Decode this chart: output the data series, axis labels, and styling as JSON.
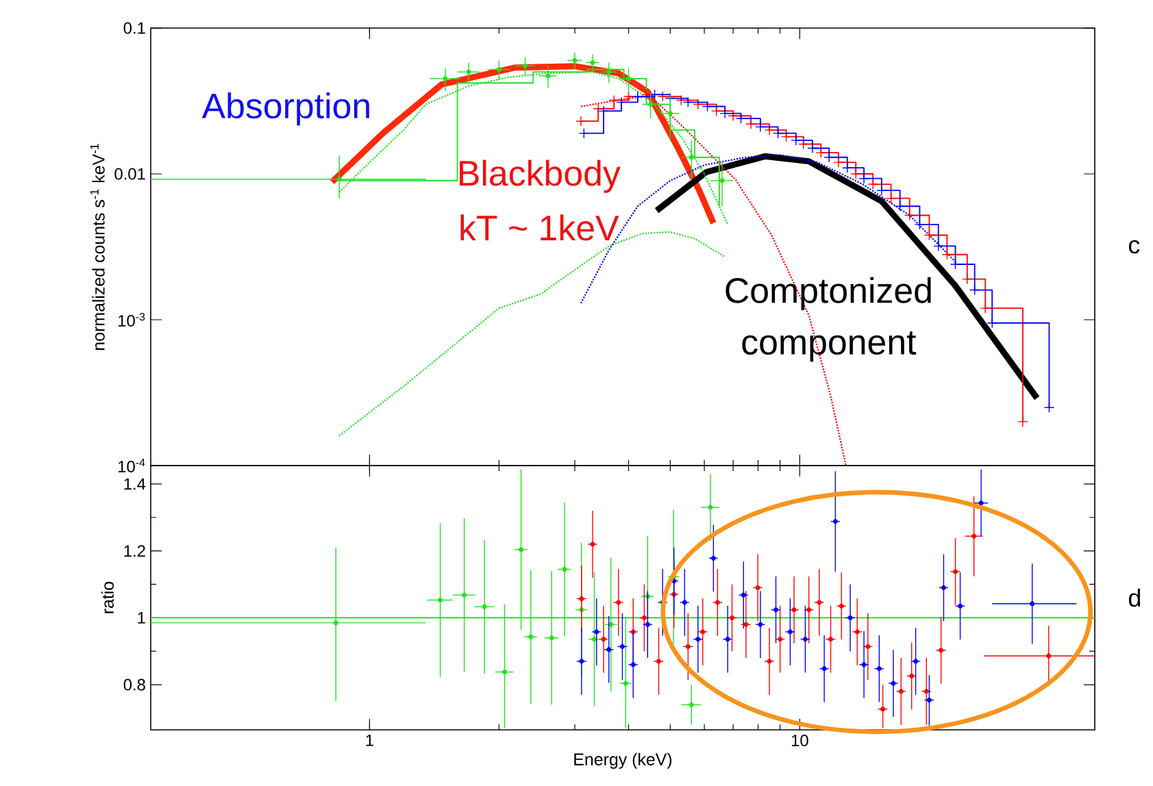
{
  "chart_data": [
    {
      "type": "step",
      "ylabel": "normalized counts s$^{-1}$ keV$^{-1}$",
      "log": "xy",
      "tick_labels": "y",
      "xlim": [
        0.31,
        48.5
      ],
      "xticks": [
        1,
        10
      ],
      "ylim": [
        0.0001,
        0.1
      ],
      "yticks": [
        0.1,
        0.01,
        {
          "value": 0.001,
          "label": "10$^{-3}$"
        },
        {
          "value": 0.0001,
          "label": "10$^{-4}$"
        }
      ],
      "series": [
        {
          "type": "scatter",
          "color": "#22e022",
          "marker": "circle",
          "x": [
            0.85,
            1.5,
            1.7,
            2.0,
            2.3,
            2.6,
            3.0,
            3.3,
            3.6,
            4.0,
            4.5,
            5.0,
            5.6,
            6.6
          ],
          "values": [
            0.0092,
            0.045,
            0.05,
            0.052,
            0.055,
            0.047,
            0.06,
            0.058,
            0.05,
            0.045,
            0.03,
            0.026,
            0.013,
            0.009
          ],
          "errors": [
            [
              0.0068,
              0.0134
            ],
            0.008,
            0.008,
            0.008,
            0.008,
            0.008,
            0.008,
            0.008,
            0.008,
            0.008,
            0.006,
            0.009,
            0.004,
            0.003
          ],
          "xerrors": [
            [
              0.31,
              1.35
            ],
            0.12,
            0.1,
            0.12,
            0.12,
            0.12,
            0.12,
            0.12,
            0.15,
            0.2,
            0.2,
            0.25,
            0.3,
            0.4
          ]
        },
        {
          "type": "step",
          "color": "#22e022",
          "x": [
            0.85,
            1.6,
            2.4,
            3.2,
            3.9,
            4.4,
            5.0,
            5.7,
            6.5
          ],
          "values": [
            0.009,
            0.042,
            0.05,
            0.052,
            0.045,
            0.03,
            0.02,
            0.013,
            0.006
          ]
        },
        {
          "type": "step",
          "color": "#ff0000",
          "marker": "cross",
          "x": [
            3.1,
            3.4,
            3.7,
            4.0,
            4.4,
            4.8,
            5.3,
            5.8,
            6.4,
            7.0,
            7.7,
            8.5,
            9.3,
            10.2,
            11.2,
            12.3,
            13.5,
            14.8,
            16.3,
            18,
            20,
            22,
            24.5,
            27,
            33
          ],
          "values": [
            0.023,
            0.028,
            0.032,
            0.034,
            0.035,
            0.034,
            0.032,
            0.03,
            0.027,
            0.025,
            0.022,
            0.02,
            0.018,
            0.016,
            0.014,
            0.012,
            0.01,
            0.0085,
            0.0068,
            0.0052,
            0.0038,
            0.0028,
            0.0019,
            0.0012,
            0.0002
          ]
        },
        {
          "type": "step",
          "color": "#0000ff",
          "marker": "cross",
          "x": [
            3.15,
            3.5,
            3.85,
            4.2,
            4.6,
            5.0,
            5.5,
            6.1,
            6.7,
            7.3,
            8.1,
            8.9,
            9.8,
            10.7,
            11.7,
            12.9,
            14.1,
            15.5,
            17.1,
            19,
            21,
            23,
            25.5,
            28,
            38
          ],
          "values": [
            0.019,
            0.027,
            0.031,
            0.034,
            0.035,
            0.033,
            0.031,
            0.029,
            0.026,
            0.024,
            0.021,
            0.019,
            0.017,
            0.015,
            0.013,
            0.011,
            0.0093,
            0.0077,
            0.006,
            0.0045,
            0.0032,
            0.0024,
            0.0016,
            0.00095,
            0.00025
          ]
        },
        {
          "type": "line",
          "color": "#22e022",
          "line_style": "dotted",
          "x": [
            0.85,
            1.0,
            1.2,
            1.35,
            1.7,
            2.1,
            2.6,
            3.3,
            3.8,
            4.5,
            5.3,
            6.0,
            6.8
          ],
          "values": [
            0.0075,
            0.012,
            0.02,
            0.03,
            0.04,
            0.046,
            0.049,
            0.05,
            0.045,
            0.032,
            0.018,
            0.01,
            0.0045
          ]
        },
        {
          "type": "line",
          "color": "#22e022",
          "line_style": "dotted",
          "x": [
            0.85,
            1.2,
            1.6,
            2.0,
            2.5,
            3.0,
            3.6,
            4.3,
            5.0,
            5.7,
            6.7
          ],
          "values": [
            0.00016,
            0.00035,
            0.0007,
            0.0012,
            0.0015,
            0.0022,
            0.0032,
            0.0039,
            0.004,
            0.0036,
            0.0027
          ]
        },
        {
          "type": "line",
          "color": "#ff0000",
          "line_style": "dotted",
          "x": [
            3.1,
            4.0,
            4.5,
            5.4,
            7.1,
            8.6,
            10.5,
            11.8,
            12.8
          ],
          "values": [
            0.029,
            0.033,
            0.034,
            0.0205,
            0.0091,
            0.0038,
            0.00107,
            0.0003,
            0.0001
          ]
        },
        {
          "type": "line",
          "color": "#0000ff",
          "line_style": "dotted",
          "x": [
            3.1,
            3.6,
            4.2,
            5.0,
            6.0,
            7.5,
            9.0,
            11,
            14,
            18,
            23
          ],
          "values": [
            0.0013,
            0.003,
            0.006,
            0.009,
            0.0115,
            0.013,
            0.0135,
            0.012,
            0.0085,
            0.0052,
            0.0025
          ]
        },
        {
          "type": "line",
          "color": "#ff2a0a",
          "x": [
            0.818,
            1.08,
            1.47,
            2.18,
            2.99,
            3.79,
            4.43,
            5.19,
            5.84,
            6.3
          ],
          "values": [
            0.0088,
            0.0193,
            0.041,
            0.0536,
            0.0548,
            0.049,
            0.0366,
            0.0154,
            0.0077,
            0.0046
          ]
        },
        {
          "type": "line",
          "color": "#000000",
          "x": [
            4.65,
            6.07,
            8.3,
            10.5,
            15.5,
            23.0,
            35.6
          ],
          "values": [
            0.0056,
            0.0103,
            0.0132,
            0.0122,
            0.0065,
            0.00171,
            0.00029
          ]
        }
      ],
      "annotations": [
        "Absorption",
        "Blackbody",
        "kT ~ 1keV",
        "Comptonized",
        "component",
        "c"
      ]
    },
    {
      "type": "scatter",
      "marker": "circle",
      "xlabel": "Energy (keV)",
      "ylabel": "ratio",
      "log": "x",
      "xlim": [
        0.31,
        48.5
      ],
      "xticks": [
        1,
        10
      ],
      "ylim": [
        0.665,
        1.455
      ],
      "yticks": [
        0.8,
        1,
        1.2,
        1.4
      ],
      "ref_lines": [
        {
          "axis": "y",
          "value": 1,
          "color": "#22e022"
        }
      ],
      "series": [
        {
          "color": "#22e022",
          "x": [
            0.835,
            1.46,
            1.66,
            1.85,
            2.06,
            2.25,
            2.37,
            2.65,
            2.84,
            3.11,
            3.33,
            3.64,
            3.94,
            4.43,
            5.09,
            5.6,
            6.2
          ],
          "values": [
            0.985,
            1.053,
            1.068,
            1.033,
            0.838,
            1.204,
            0.943,
            0.94,
            1.145,
            1.024,
            0.936,
            0.98,
            0.804,
            1.064,
            1.123,
            0.74,
            1.33
          ],
          "errors": [
            [
              0.75,
              1.21
            ],
            0.23,
            0.23,
            0.2,
            [
              0.67,
              1.04
            ],
            0.24,
            0.2,
            0.2,
            0.2,
            0.2,
            0.2,
            0.2,
            [
              0.67,
              1.0
            ],
            0.18,
            0.2,
            0.06,
            0.1
          ],
          "xerrors": [
            [
              0.31,
              1.35
            ],
            0.1,
            0.1,
            0.1,
            0.1,
            0.08,
            0.08,
            0.1,
            0.1,
            0.1,
            0.1,
            0.12,
            0.12,
            0.15,
            0.15,
            0.3,
            0.3
          ]
        },
        {
          "color": "#ff0000",
          "x": [
            3.11,
            3.3,
            3.5,
            3.79,
            4.1,
            4.35,
            4.7,
            5.1,
            5.5,
            5.95,
            6.44,
            6.96,
            7.5,
            7.99,
            8.5,
            9.0,
            9.7,
            10.5,
            11.1,
            11.8,
            12.5,
            13.6,
            14.4,
            15.6,
            17.2,
            18.2,
            19.7,
            21.3,
            23,
            25.4,
            37.9
          ],
          "values": [
            1.057,
            1.22,
            0.936,
            1.046,
            0.958,
            1.0,
            0.87,
            1.07,
            0.914,
            0.958,
            1.046,
            1.0,
            0.98,
            1.09,
            0.87,
            0.936,
            1.024,
            1.024,
            1.046,
            0.936,
            1.035,
            0.958,
            0.914,
            0.727,
            0.78,
            0.826,
            0.78,
            0.903,
            1.138,
            1.244,
            0.886
          ],
          "errors": [
            0.1,
            0.1,
            0.1,
            0.1,
            0.1,
            0.1,
            0.1,
            0.1,
            0.1,
            0.1,
            0.1,
            0.1,
            0.1,
            0.1,
            0.1,
            0.1,
            0.1,
            0.1,
            0.1,
            0.1,
            0.1,
            0.1,
            0.1,
            [
              0.67,
              0.8
            ],
            0.1,
            0.1,
            0.1,
            0.1,
            0.1,
            0.12,
            0.09
          ],
          "xerrors": [
            0.08,
            0.08,
            0.08,
            0.1,
            0.1,
            0.1,
            0.12,
            0.12,
            0.14,
            0.15,
            0.16,
            0.17,
            0.19,
            0.2,
            0.21,
            0.22,
            0.24,
            0.26,
            0.28,
            0.3,
            0.31,
            0.34,
            0.36,
            0.39,
            0.43,
            0.45,
            0.5,
            0.55,
            0.6,
            1.2,
            [
              26.8,
              48.5
            ]
          ]
        },
        {
          "color": "#0000ff",
          "x": [
            3.11,
            3.37,
            3.6,
            3.87,
            4.1,
            4.43,
            4.8,
            5.1,
            5.4,
            5.8,
            6.3,
            6.8,
            7.4,
            8.1,
            8.8,
            9.5,
            10.3,
            11.4,
            12.1,
            13.1,
            14.1,
            15.3,
            16.5,
            18.6,
            20.0,
            21.6,
            23.6,
            26.4,
            34.7
          ],
          "values": [
            0.87,
            0.958,
            0.905,
            0.914,
            0.86,
            0.98,
            1.046,
            1.11,
            1.046,
            0.936,
            1.178,
            0.936,
            1.068,
            0.98,
            1.024,
            0.958,
            0.936,
            0.848,
            1.288,
            1.0,
            0.86,
            0.848,
            0.804,
            0.87,
            0.754,
            1.09,
            1.035,
            1.343,
            1.042
          ],
          "errors": [
            0.1,
            0.1,
            0.1,
            0.1,
            0.1,
            0.1,
            0.1,
            0.1,
            0.1,
            0.1,
            0.1,
            0.1,
            0.1,
            0.1,
            0.1,
            0.1,
            0.1,
            0.1,
            0.15,
            0.1,
            0.1,
            0.1,
            0.1,
            0.1,
            [
              0.677,
              0.829
            ],
            0.1,
            0.1,
            0.1,
            0.12
          ],
          "xerrors": [
            0.08,
            0.08,
            0.09,
            0.1,
            0.1,
            0.11,
            0.12,
            0.12,
            0.13,
            0.14,
            0.15,
            0.17,
            0.18,
            0.2,
            0.22,
            0.24,
            0.26,
            0.28,
            0.3,
            0.32,
            0.35,
            0.38,
            0.41,
            0.46,
            0.5,
            0.54,
            0.6,
            1.0,
            [
              28,
              44
            ]
          ]
        }
      ],
      "annotations": [
        "d"
      ]
    }
  ]
}
